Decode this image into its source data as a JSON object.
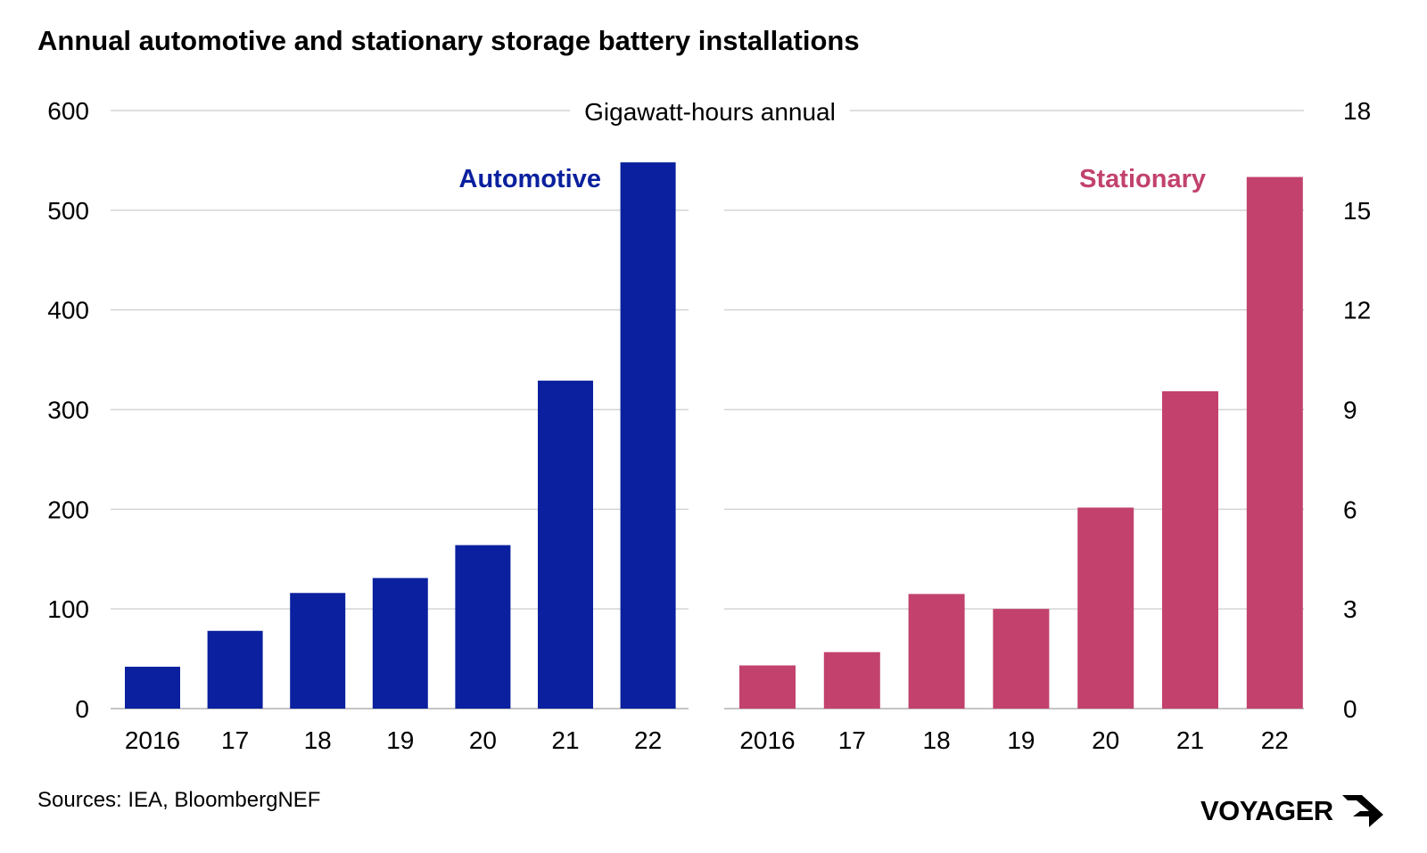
{
  "title": "Annual automotive and stationary storage battery installations",
  "source": "Sources: IEA, BloombergNEF",
  "brand": "VOYAGER",
  "colors": {
    "automotive": "#0a209e",
    "stationary": "#c2426d",
    "grid": "#d4d4d4"
  },
  "chart_data": {
    "type": "bar",
    "unit_label": "Gigawatt-hours annual",
    "categories": [
      "2016",
      "17",
      "18",
      "19",
      "20",
      "21",
      "22"
    ],
    "series": [
      {
        "name": "Automotive",
        "axis": "left",
        "values": [
          42,
          78,
          116,
          131,
          164,
          329,
          548
        ],
        "ylim": [
          0,
          600
        ],
        "yticks": [
          0,
          100,
          200,
          300,
          400,
          500,
          600
        ]
      },
      {
        "name": "Stationary",
        "axis": "right",
        "values": [
          1.3,
          1.7,
          3.45,
          3.0,
          6.05,
          9.55,
          16.0
        ],
        "ylim": [
          0,
          18
        ],
        "yticks": [
          0,
          3,
          6,
          9,
          12,
          15,
          18
        ]
      }
    ],
    "grid": true,
    "legend": "none"
  }
}
